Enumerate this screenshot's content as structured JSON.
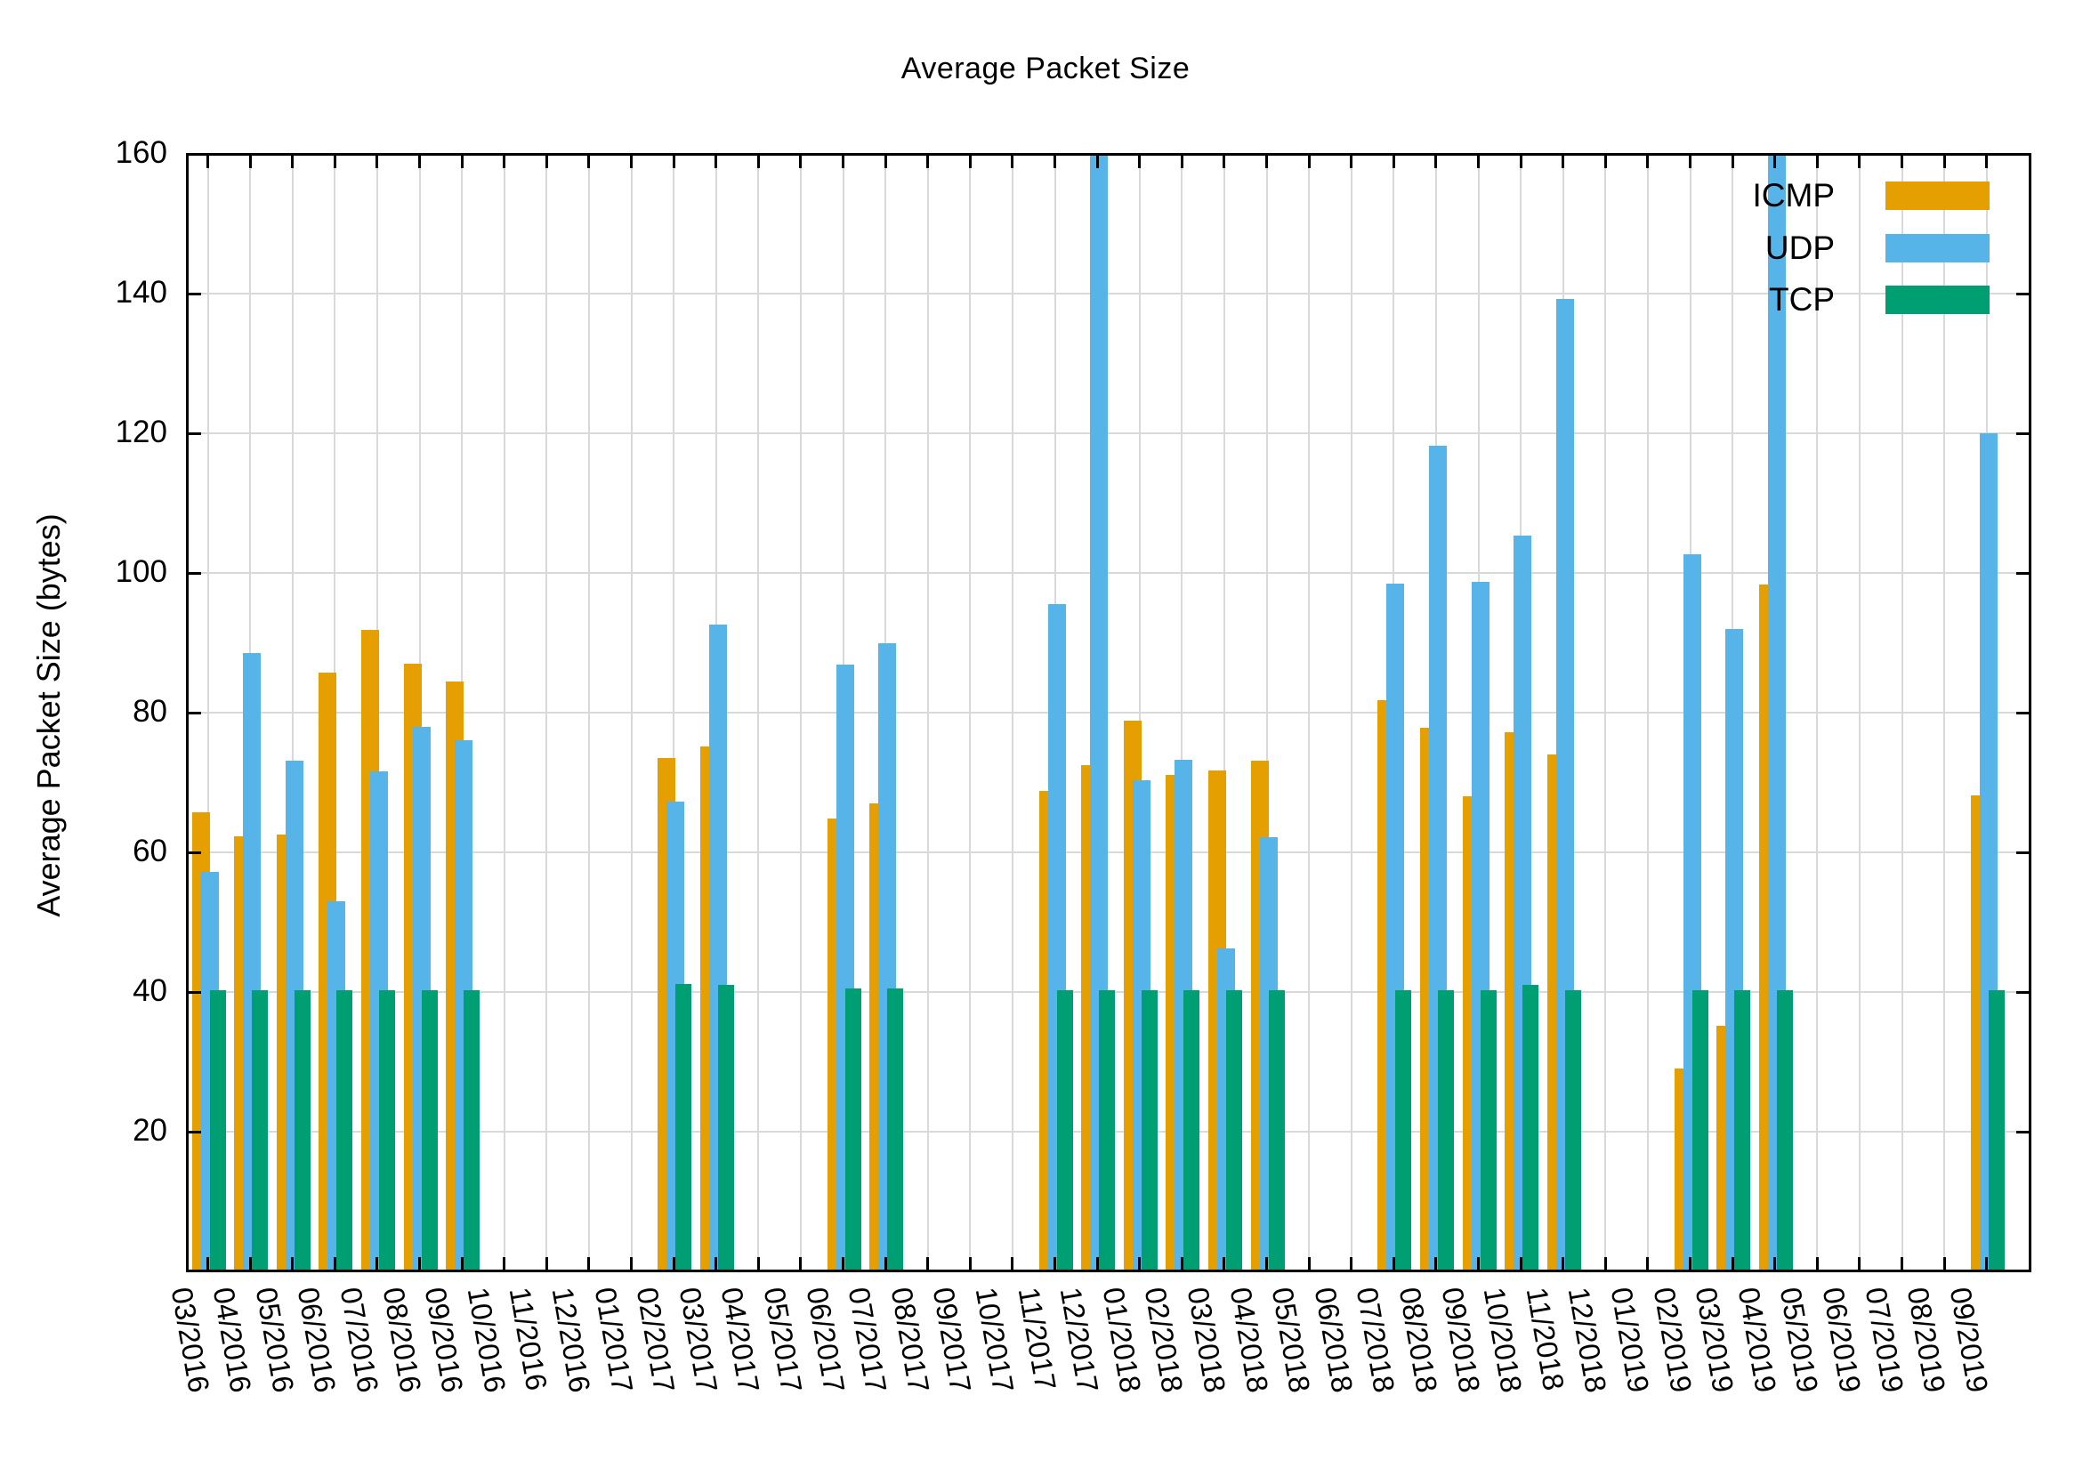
{
  "title": "Average Packet Size",
  "y_axis": {
    "label": "Average Packet Size (bytes)",
    "tick_labels": [
      20,
      40,
      60,
      80,
      100,
      120,
      140,
      160
    ],
    "min": 0,
    "max": 160
  },
  "legend": {
    "position": "top-right-inside",
    "entries": [
      {
        "label": "ICMP",
        "color": "#E69F00"
      },
      {
        "label": "UDP",
        "color": "#56B4E9"
      },
      {
        "label": "TCP",
        "color": "#009E73"
      }
    ]
  },
  "colors": {
    "icmp": "#E69F00",
    "udp": "#56B4E9",
    "tcp": "#009E73",
    "grid": "#d9d9d9",
    "axis": "#000000"
  },
  "chart_data": {
    "type": "bar",
    "title": "Average Packet Size",
    "xlabel": "",
    "ylabel": "Average Packet Size (bytes)",
    "ylim": [
      0,
      160
    ],
    "grid": true,
    "legend_position": "top-right",
    "categories": [
      "03/2016",
      "04/2016",
      "05/2016",
      "06/2016",
      "07/2016",
      "08/2016",
      "09/2016",
      "10/2016",
      "11/2016",
      "12/2016",
      "01/2017",
      "02/2017",
      "03/2017",
      "04/2017",
      "05/2017",
      "06/2017",
      "07/2017",
      "08/2017",
      "09/2017",
      "10/2017",
      "11/2017",
      "12/2017",
      "01/2018",
      "02/2018",
      "03/2018",
      "04/2018",
      "05/2018",
      "06/2018",
      "07/2018",
      "08/2018",
      "09/2018",
      "10/2018",
      "11/2018",
      "12/2018",
      "01/2019",
      "02/2019",
      "03/2019",
      "04/2019",
      "05/2019",
      "06/2019",
      "07/2019",
      "08/2019",
      "09/2019"
    ],
    "series": [
      {
        "name": "ICMP",
        "values": [
          65.7,
          62.3,
          62.5,
          85.7,
          91.9,
          87.0,
          84.5,
          null,
          null,
          null,
          null,
          73.5,
          75.2,
          null,
          null,
          64.9,
          67.0,
          null,
          null,
          null,
          68.8,
          72.5,
          78.8,
          71.1,
          71.7,
          73.1,
          null,
          null,
          81.8,
          77.8,
          68.0,
          77.2,
          74.0,
          null,
          null,
          29.0,
          35.1,
          98.3,
          null,
          null,
          null,
          null,
          68.1
        ]
      },
      {
        "name": "UDP",
        "values": [
          57.2,
          88.5,
          73.1,
          53.0,
          71.6,
          78.0,
          76.1,
          null,
          null,
          null,
          null,
          67.2,
          92.6,
          null,
          null,
          86.9,
          90.0,
          null,
          null,
          null,
          95.5,
          160,
          70.3,
          73.2,
          46.3,
          62.2,
          null,
          null,
          98.5,
          118.2,
          98.7,
          105.4,
          139.2,
          null,
          null,
          102.7,
          92.0,
          160,
          null,
          null,
          null,
          null,
          120.0
        ]
      },
      {
        "name": "TCP",
        "values": [
          40.3,
          40.3,
          40.3,
          40.3,
          40.3,
          40.3,
          40.3,
          null,
          null,
          null,
          null,
          41.1,
          41.0,
          null,
          null,
          40.5,
          40.5,
          null,
          null,
          null,
          40.3,
          40.3,
          40.3,
          40.3,
          40.3,
          40.3,
          null,
          null,
          40.3,
          40.3,
          40.3,
          41.0,
          40.3,
          null,
          null,
          40.3,
          40.3,
          40.3,
          null,
          null,
          null,
          null,
          40.3
        ]
      }
    ],
    "clipped_bars": [
      {
        "category": "12/2017",
        "series": "UDP",
        "note": "bar exceeds y-axis max of 160"
      },
      {
        "category": "04/2019",
        "series": "UDP",
        "note": "bar exceeds y-axis max of 160"
      }
    ]
  }
}
